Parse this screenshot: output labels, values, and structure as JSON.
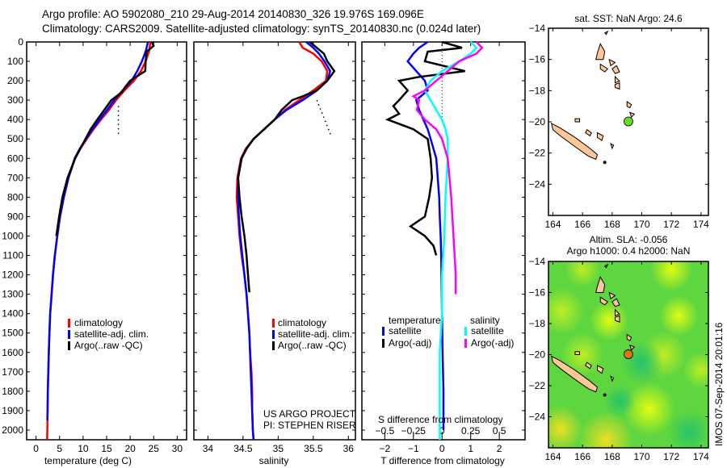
{
  "header": {
    "line1": "Argo profile: AO 5902080_210 29-Aug-2014 20140830_326 19.976S 169.096E",
    "line2": "Climatology: CARS2009. Satellite-adjusted climatology: synTS_20140830.nc (0.024d later)"
  },
  "colors": {
    "climatology": "#ff0000",
    "satellite": "#0000ff",
    "argo": "#000000",
    "sal_satellite": "#00ffff",
    "sal_argo": "#ff00ff",
    "land": "#ffc896",
    "argo_marker_sst": "#66dd22",
    "argo_marker_sla": "#dd7711"
  },
  "chart_data": [
    {
      "type": "line",
      "name": "temperature-profile",
      "xlabel": "temperature (deg C)",
      "ylabel": "",
      "xlim": [
        -2,
        32
      ],
      "ylim": [
        2050,
        0
      ],
      "xticks": [
        0,
        5,
        10,
        15,
        20,
        25,
        30
      ],
      "yticks": [
        0,
        100,
        200,
        300,
        400,
        500,
        600,
        700,
        800,
        900,
        1000,
        1100,
        1200,
        1300,
        1400,
        1500,
        1600,
        1700,
        1800,
        1900,
        2000
      ],
      "legend": [
        "climatology",
        "satellite-adj. clim.",
        "Argo(..raw -QC)"
      ],
      "legend_position": "center",
      "series": [
        {
          "name": "climatology",
          "color": "#ff0000",
          "depth": [
            0,
            50,
            100,
            150,
            200,
            250,
            300,
            350,
            400,
            450,
            500,
            550,
            600,
            700,
            800,
            900,
            1000,
            1100,
            1200,
            1300,
            1400,
            1500,
            1600,
            1700,
            1800,
            1900,
            2000,
            2050
          ],
          "values": [
            24.3,
            24.0,
            23.3,
            22.3,
            20.8,
            18.8,
            17.0,
            15.5,
            13.8,
            12.2,
            10.8,
            9.4,
            8.3,
            6.9,
            5.9,
            5.1,
            4.5,
            4.0,
            3.6,
            3.3,
            3.0,
            2.85,
            2.7,
            2.6,
            2.5,
            2.45,
            2.4,
            2.35
          ]
        },
        {
          "name": "satellite-adj. clim.",
          "color": "#0000ff",
          "depth": [
            0,
            50,
            100,
            150,
            200,
            250,
            300,
            350,
            400,
            450,
            500,
            550,
            600,
            700,
            800,
            900,
            1000,
            1100,
            1200,
            1300,
            1400,
            1500,
            1600,
            1700,
            1800,
            1900,
            1950
          ],
          "values": [
            23.8,
            23.3,
            22.5,
            21.5,
            20.3,
            18.4,
            16.6,
            15.1,
            13.5,
            12.0,
            10.6,
            9.3,
            8.2,
            6.9,
            5.9,
            5.1,
            4.5,
            4.0,
            3.6,
            3.3,
            3.0,
            2.85,
            2.7,
            2.6,
            2.5,
            2.45,
            2.4
          ]
        },
        {
          "name": "Argo(..raw -QC)",
          "color": "#000000",
          "depth": [
            0,
            20,
            50,
            100,
            150,
            200,
            230,
            260,
            300,
            350,
            400,
            450,
            500,
            550,
            600,
            700,
            800,
            900,
            1000
          ],
          "values": [
            24.6,
            25.0,
            23.5,
            23.3,
            23.2,
            20.0,
            19.0,
            18.2,
            16.0,
            14.5,
            13.0,
            11.6,
            10.5,
            9.4,
            8.3,
            6.7,
            5.6,
            4.9,
            4.3
          ]
        },
        {
          "name": "dotted-reference",
          "color": "#000000",
          "style": "dotted",
          "depth": [
            330,
            480
          ],
          "values": [
            17.5,
            17.5
          ]
        }
      ]
    },
    {
      "type": "line",
      "name": "salinity-profile",
      "xlabel": "salinity",
      "xlim": [
        33.8,
        36.1
      ],
      "ylim": [
        2050,
        0
      ],
      "xticks": [
        34,
        34.5,
        35,
        35.5,
        36
      ],
      "legend": [
        "climatology",
        "satellite-adj. clim.",
        "Argo(..raw -QC)"
      ],
      "legend_position": "center-right",
      "annotation": [
        "US ARGO PROJECT",
        "PI: STEPHEN RISER"
      ],
      "series": [
        {
          "name": "climatology",
          "color": "#ff0000",
          "depth": [
            0,
            30,
            60,
            100,
            150,
            200,
            250,
            300,
            350,
            400,
            450,
            500,
            550,
            600,
            700,
            800,
            900,
            1000,
            1100,
            1200,
            1300,
            1400,
            1500,
            1600,
            1700,
            1800,
            1900,
            2000,
            2050
          ],
          "values": [
            35.3,
            35.35,
            35.5,
            35.62,
            35.7,
            35.68,
            35.5,
            35.3,
            35.1,
            34.95,
            34.8,
            34.65,
            34.54,
            34.47,
            34.42,
            34.41,
            34.43,
            34.45,
            34.48,
            34.52,
            34.55,
            34.57,
            34.59,
            34.6,
            34.62,
            34.63,
            34.63,
            34.64,
            34.65
          ]
        },
        {
          "name": "satellite-adj. clim.",
          "color": "#0000ff",
          "depth": [
            0,
            30,
            60,
            100,
            150,
            200,
            250,
            300,
            350,
            400,
            450,
            500,
            550,
            600,
            700,
            800,
            900,
            1000,
            1100,
            1200,
            1300,
            1400,
            1500,
            1600,
            1700,
            1800,
            1900,
            2000,
            2050
          ],
          "values": [
            35.4,
            35.5,
            35.58,
            35.66,
            35.74,
            35.7,
            35.55,
            35.35,
            35.12,
            34.95,
            34.8,
            34.65,
            34.55,
            34.48,
            34.43,
            34.43,
            34.44,
            34.46,
            34.49,
            34.52,
            34.55,
            34.57,
            34.59,
            34.6,
            34.61,
            34.62,
            34.63,
            34.64,
            34.65
          ]
        },
        {
          "name": "Argo(..raw -QC)",
          "color": "#000000",
          "depth": [
            0,
            30,
            60,
            100,
            150,
            200,
            250,
            280,
            300,
            350,
            400,
            450,
            500,
            550,
            600,
            700,
            800,
            900,
            1000,
            1100,
            1200,
            1290
          ],
          "values": [
            35.45,
            35.55,
            35.65,
            35.7,
            35.8,
            35.7,
            35.55,
            35.35,
            35.2,
            35.05,
            34.95,
            34.8,
            34.65,
            34.55,
            34.48,
            34.43,
            34.45,
            34.48,
            34.52,
            34.55,
            34.57,
            34.59
          ]
        },
        {
          "name": "dotted-reference",
          "color": "#000000",
          "style": "dotted",
          "depth": [
            300,
            480
          ],
          "values": [
            35.55,
            35.75
          ]
        }
      ]
    },
    {
      "type": "line",
      "name": "difference-from-climatology",
      "xlabel": "T difference from climatology",
      "xlabel_top": "S difference from climatology",
      "xlim": [
        -2.8,
        2.9
      ],
      "ylim": [
        2050,
        0
      ],
      "xticks": [
        -2,
        -1,
        0,
        1,
        2
      ],
      "xticks_salinity": [
        -0.5,
        -0.25,
        0,
        0.25,
        0.5
      ],
      "legend": {
        "temperature": [
          "satellite",
          "Argo(-adj)"
        ],
        "salinity": [
          "satellite",
          "Argo(-adj)"
        ]
      },
      "legend_position": "lower-center",
      "series": [
        {
          "name": "temperature satellite",
          "color": "#0000ff",
          "depth": [
            0,
            30,
            60,
            100,
            150,
            200,
            250,
            300,
            350,
            400,
            450,
            500,
            600,
            700,
            800,
            900,
            1000,
            1100,
            1200,
            1400,
            1600,
            1800,
            2000
          ],
          "values": [
            -0.5,
            -0.8,
            -1.0,
            -1.2,
            -0.9,
            -0.6,
            -0.5,
            -0.9,
            -0.8,
            -0.65,
            -0.5,
            -0.4,
            -0.2,
            -0.15,
            -0.1,
            -0.08,
            -0.05,
            -0.03,
            -0.02,
            0.0,
            0.02,
            0.05,
            0.05
          ]
        },
        {
          "name": "temperature Argo(-adj)",
          "color": "#000000",
          "depth": [
            0,
            30,
            50,
            100,
            150,
            180,
            200,
            250,
            300,
            330,
            370,
            400,
            450,
            500,
            600,
            700,
            800,
            900,
            950,
            1000,
            1050,
            1100
          ],
          "values": [
            0.0,
            0.7,
            -0.5,
            -0.6,
            0.8,
            -0.8,
            -1.5,
            -1.2,
            -1.5,
            -1.7,
            -1.5,
            -1.9,
            -1.0,
            -0.5,
            -0.4,
            -0.35,
            -0.45,
            -0.6,
            -1.1,
            -0.6,
            -0.3,
            -0.2
          ]
        }
      ],
      "series_salinity": [
        {
          "name": "salinity satellite",
          "color": "#00ffff",
          "depth": [
            0,
            30,
            60,
            100,
            150,
            200,
            250,
            300,
            350,
            400,
            450,
            500,
            600,
            800,
            1000,
            1200,
            1400,
            1600,
            1800,
            2000,
            2050
          ],
          "values": [
            0.25,
            0.3,
            0.25,
            0.15,
            0.0,
            -0.1,
            -0.15,
            -0.1,
            -0.05,
            0.0,
            0.03,
            0.05,
            0.05,
            0.03,
            0.02,
            0.0,
            0.0,
            -0.02,
            -0.02,
            -0.02,
            -0.02
          ]
        },
        {
          "name": "salinity Argo(-adj)",
          "color": "#ff00ff",
          "depth": [
            0,
            30,
            60,
            100,
            150,
            200,
            250,
            280,
            300,
            350,
            400,
            450,
            500,
            600,
            800,
            1000,
            1200,
            1300
          ],
          "values": [
            0.3,
            0.35,
            0.3,
            0.15,
            0.05,
            -0.05,
            -0.15,
            -0.25,
            -0.2,
            -0.22,
            -0.15,
            -0.05,
            0.0,
            0.05,
            0.08,
            0.1,
            0.12,
            0.12
          ]
        }
      ]
    },
    {
      "type": "scatter",
      "name": "map-sst",
      "title": "sat. SST: NaN Argo: 24.6",
      "xlim": [
        163.7,
        174.5
      ],
      "ylim": [
        -26,
        -14
      ],
      "xticks": [
        164,
        166,
        168,
        170,
        172,
        174
      ],
      "yticks": [
        -14,
        -16,
        -18,
        -20,
        -22,
        -24
      ],
      "marker": {
        "lon": 169.096,
        "lat": -19.976,
        "color": "#66dd22"
      }
    },
    {
      "type": "heatmap",
      "name": "map-sla",
      "title": "Altim. SLA: -0.056",
      "subtitle": "Argo h1000: 0.4 h2000: NaN",
      "xlim": [
        163.7,
        174.5
      ],
      "ylim": [
        -26,
        -14
      ],
      "xticks": [
        164,
        166,
        168,
        170,
        172,
        174
      ],
      "yticks": [
        -14,
        -16,
        -18,
        -20,
        -22,
        -24
      ],
      "marker": {
        "lon": 169.096,
        "lat": -19.976,
        "color": "#dd7711"
      }
    }
  ],
  "watermark": "IMOS 07-Sep-2014 20:01:16"
}
